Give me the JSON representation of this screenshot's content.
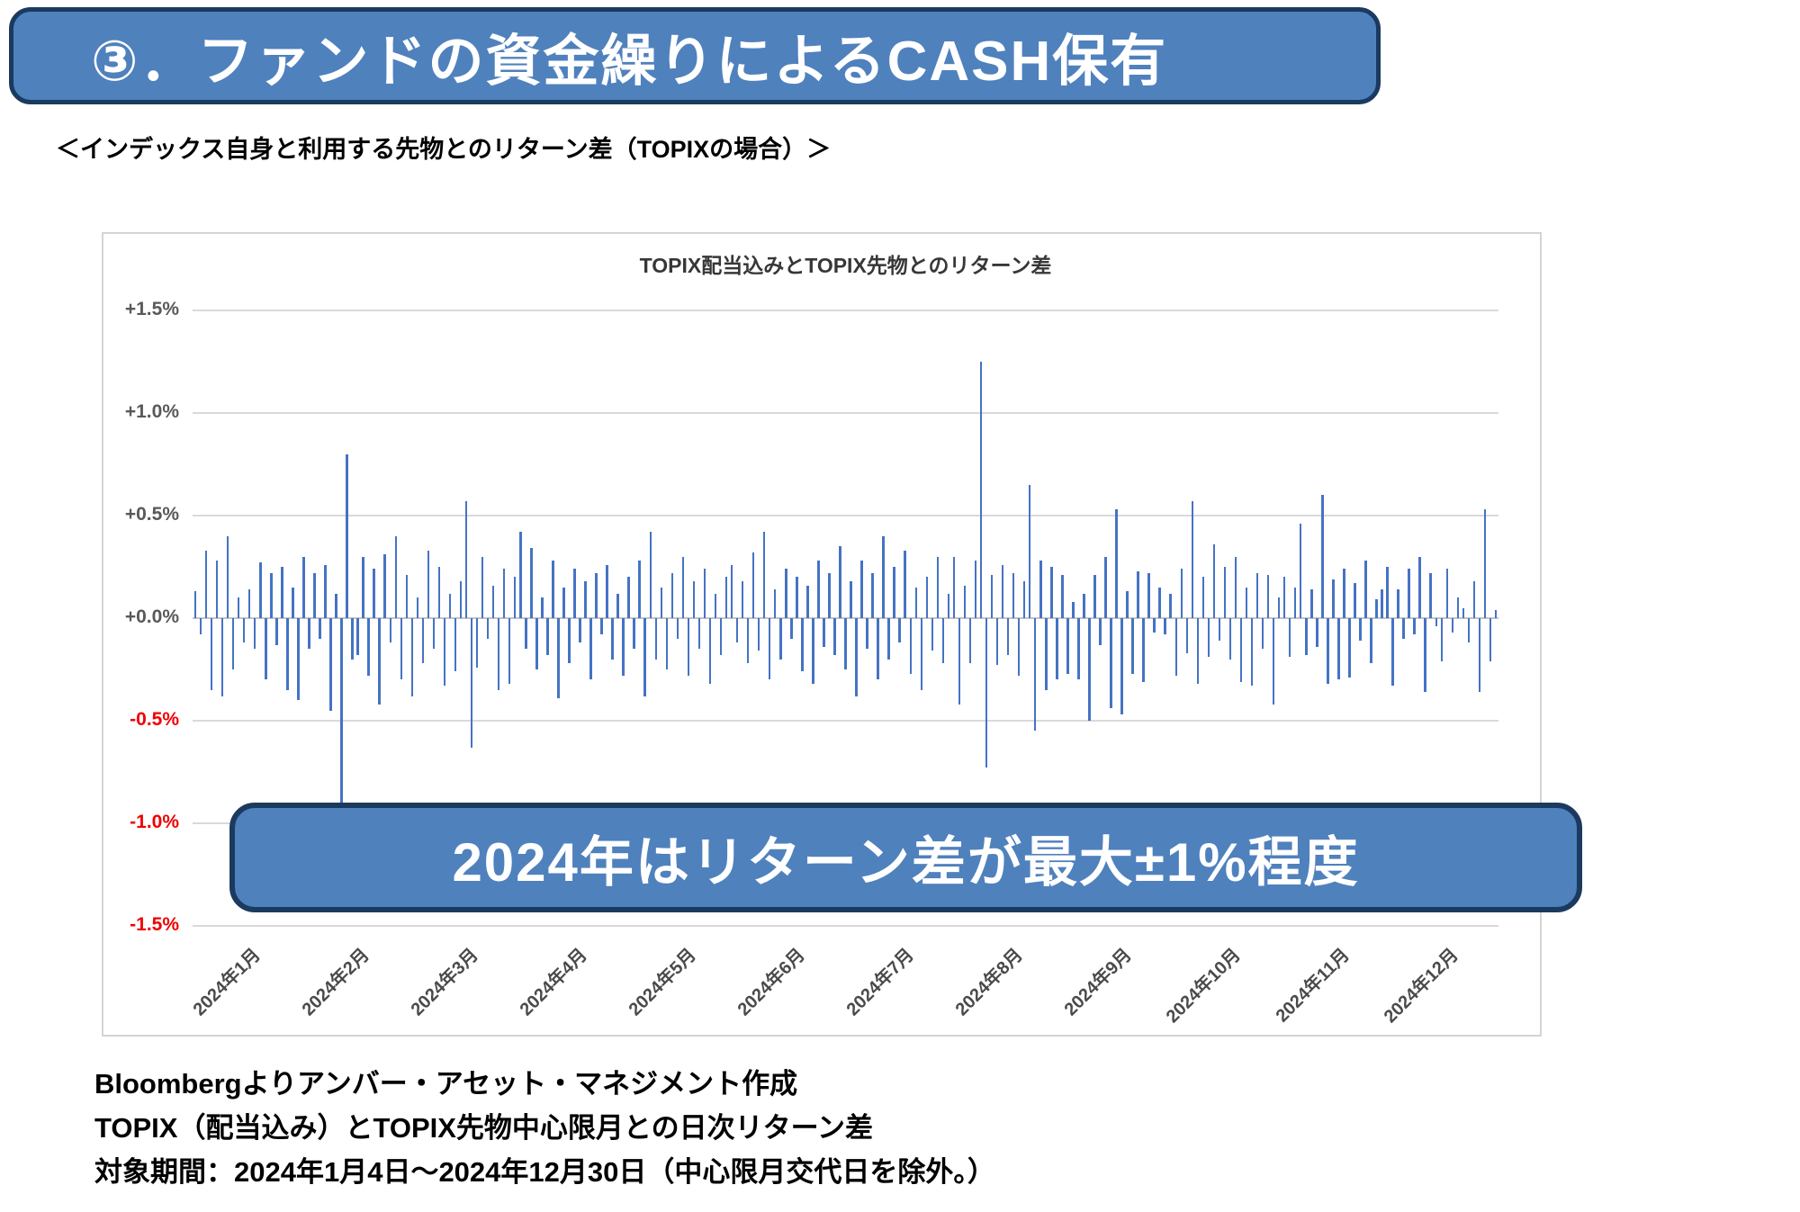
{
  "banner": {
    "text": "③．ファンドの資金繰りによるCASH保有"
  },
  "subtitle": "＜インデックス自身と利用する先物とのリターン差（TOPIXの場合）＞",
  "callout": {
    "text": "2024年はリターン差が最大±1%程度"
  },
  "footer": {
    "lines": [
      "Bloombergよりアンバー・アセット・マネジメント作成",
      "TOPIX（配当込み）とTOPIX先物中心限月との日次リターン差",
      "対象期間：2024年1月4日～2024年12月30日（中心限月交代日を除外。）"
    ]
  },
  "colors": {
    "accent_blue": "#4f81bd",
    "border_navy": "#1b3a5f",
    "bar_blue": "#4573c4",
    "grid_gray": "#d9d9d9",
    "zero_gray": "#c4c4c4",
    "label_gray": "#595959",
    "negative_red": "#f00000"
  },
  "chart_data": {
    "type": "bar",
    "title": "TOPIX配当込みとTOPIX先物とのリターン差",
    "xlabel": "",
    "ylabel": "",
    "unit": "%",
    "ylim": [
      -1.5,
      1.5
    ],
    "grid": true,
    "legend": false,
    "y_ticks": [
      {
        "label": "+1.5%",
        "value": 1.5,
        "color": "#595959"
      },
      {
        "label": "+1.0%",
        "value": 1.0,
        "color": "#595959"
      },
      {
        "label": "+0.5%",
        "value": 0.5,
        "color": "#595959"
      },
      {
        "label": "+0.0%",
        "value": 0.0,
        "color": "#595959"
      },
      {
        "label": "-0.5%",
        "value": -0.5,
        "color": "#f00000"
      },
      {
        "label": "-1.0%",
        "value": -1.0,
        "color": "#f00000"
      },
      {
        "label": "-1.5%",
        "value": -1.5,
        "color": "#f00000"
      }
    ],
    "x_tick_labels": [
      "2024年1月",
      "2024年2月",
      "2024年3月",
      "2024年4月",
      "2024年5月",
      "2024年6月",
      "2024年7月",
      "2024年8月",
      "2024年9月",
      "2024年10月",
      "2024年11月",
      "2024年12月"
    ],
    "month_counts": [
      19,
      19,
      20,
      21,
      20,
      20,
      21,
      21,
      19,
      21,
      19,
      21
    ],
    "values": [
      0.13,
      -0.08,
      0.33,
      -0.35,
      0.28,
      -0.38,
      0.4,
      -0.25,
      0.1,
      -0.12,
      0.14,
      -0.15,
      0.27,
      -0.3,
      0.22,
      -0.13,
      0.25,
      -0.35,
      0.15,
      -0.4,
      0.3,
      -0.15,
      0.22,
      -0.1,
      0.26,
      -0.45,
      0.12,
      -1.0,
      0.8,
      -0.2,
      -0.18,
      0.3,
      -0.28,
      0.24,
      -0.42,
      0.31,
      -0.12,
      0.4,
      -0.3,
      0.21,
      -0.38,
      0.1,
      -0.22,
      0.33,
      -0.15,
      0.25,
      -0.33,
      0.12,
      -0.26,
      0.18,
      0.57,
      -0.63,
      -0.24,
      0.3,
      -0.1,
      0.16,
      -0.35,
      0.24,
      -0.32,
      0.2,
      0.42,
      -0.15,
      0.34,
      -0.25,
      0.1,
      -0.18,
      0.28,
      -0.39,
      0.15,
      -0.22,
      0.24,
      -0.12,
      0.18,
      -0.3,
      0.22,
      -0.08,
      0.26,
      -0.2,
      0.12,
      -0.28,
      0.2,
      -0.15,
      0.28,
      -0.38,
      0.42,
      -0.2,
      0.15,
      -0.25,
      0.22,
      -0.1,
      0.3,
      -0.28,
      0.18,
      -0.15,
      0.24,
      -0.32,
      0.12,
      -0.18,
      0.2,
      0.26,
      -0.12,
      0.18,
      -0.22,
      0.32,
      -0.16,
      0.42,
      -0.3,
      0.14,
      -0.2,
      0.24,
      -0.1,
      0.2,
      -0.26,
      0.16,
      -0.32,
      0.28,
      -0.14,
      0.22,
      -0.18,
      0.35,
      -0.25,
      0.18,
      -0.38,
      0.28,
      -0.15,
      0.22,
      -0.3,
      0.4,
      -0.2,
      0.25,
      -0.12,
      0.33,
      -0.27,
      0.15,
      -0.35,
      0.2,
      -0.16,
      0.3,
      -0.22,
      0.12,
      0.3,
      -0.42,
      0.16,
      -0.22,
      0.28,
      1.25,
      -0.73,
      0.21,
      -0.23,
      0.26,
      -0.18,
      0.22,
      -0.28,
      0.18,
      0.65,
      -0.55,
      0.28,
      -0.35,
      0.25,
      -0.3,
      0.21,
      -0.27,
      0.08,
      -0.3,
      0.12,
      -0.5,
      0.21,
      -0.13,
      0.3,
      -0.44,
      0.53,
      -0.47,
      0.13,
      -0.27,
      0.23,
      -0.31,
      0.22,
      -0.07,
      0.15,
      -0.08,
      0.12,
      -0.28,
      0.24,
      -0.17,
      0.57,
      -0.32,
      0.2,
      -0.19,
      0.36,
      -0.11,
      0.25,
      -0.2,
      0.3,
      -0.31,
      0.15,
      -0.33,
      0.22,
      -0.15,
      0.21,
      -0.42,
      0.1,
      0.2,
      -0.19,
      0.15,
      0.46,
      -0.18,
      0.14,
      -0.14,
      0.6,
      -0.32,
      0.19,
      -0.3,
      0.24,
      -0.29,
      0.17,
      -0.11,
      0.28,
      -0.22,
      0.09,
      0.14,
      0.25,
      -0.33,
      0.14,
      -0.1,
      0.24,
      -0.08,
      0.3,
      -0.36,
      0.22,
      -0.04,
      -0.21,
      0.24,
      -0.07,
      0.1,
      0.05,
      -0.12,
      0.18,
      -0.36,
      0.53,
      -0.21,
      0.04
    ]
  }
}
